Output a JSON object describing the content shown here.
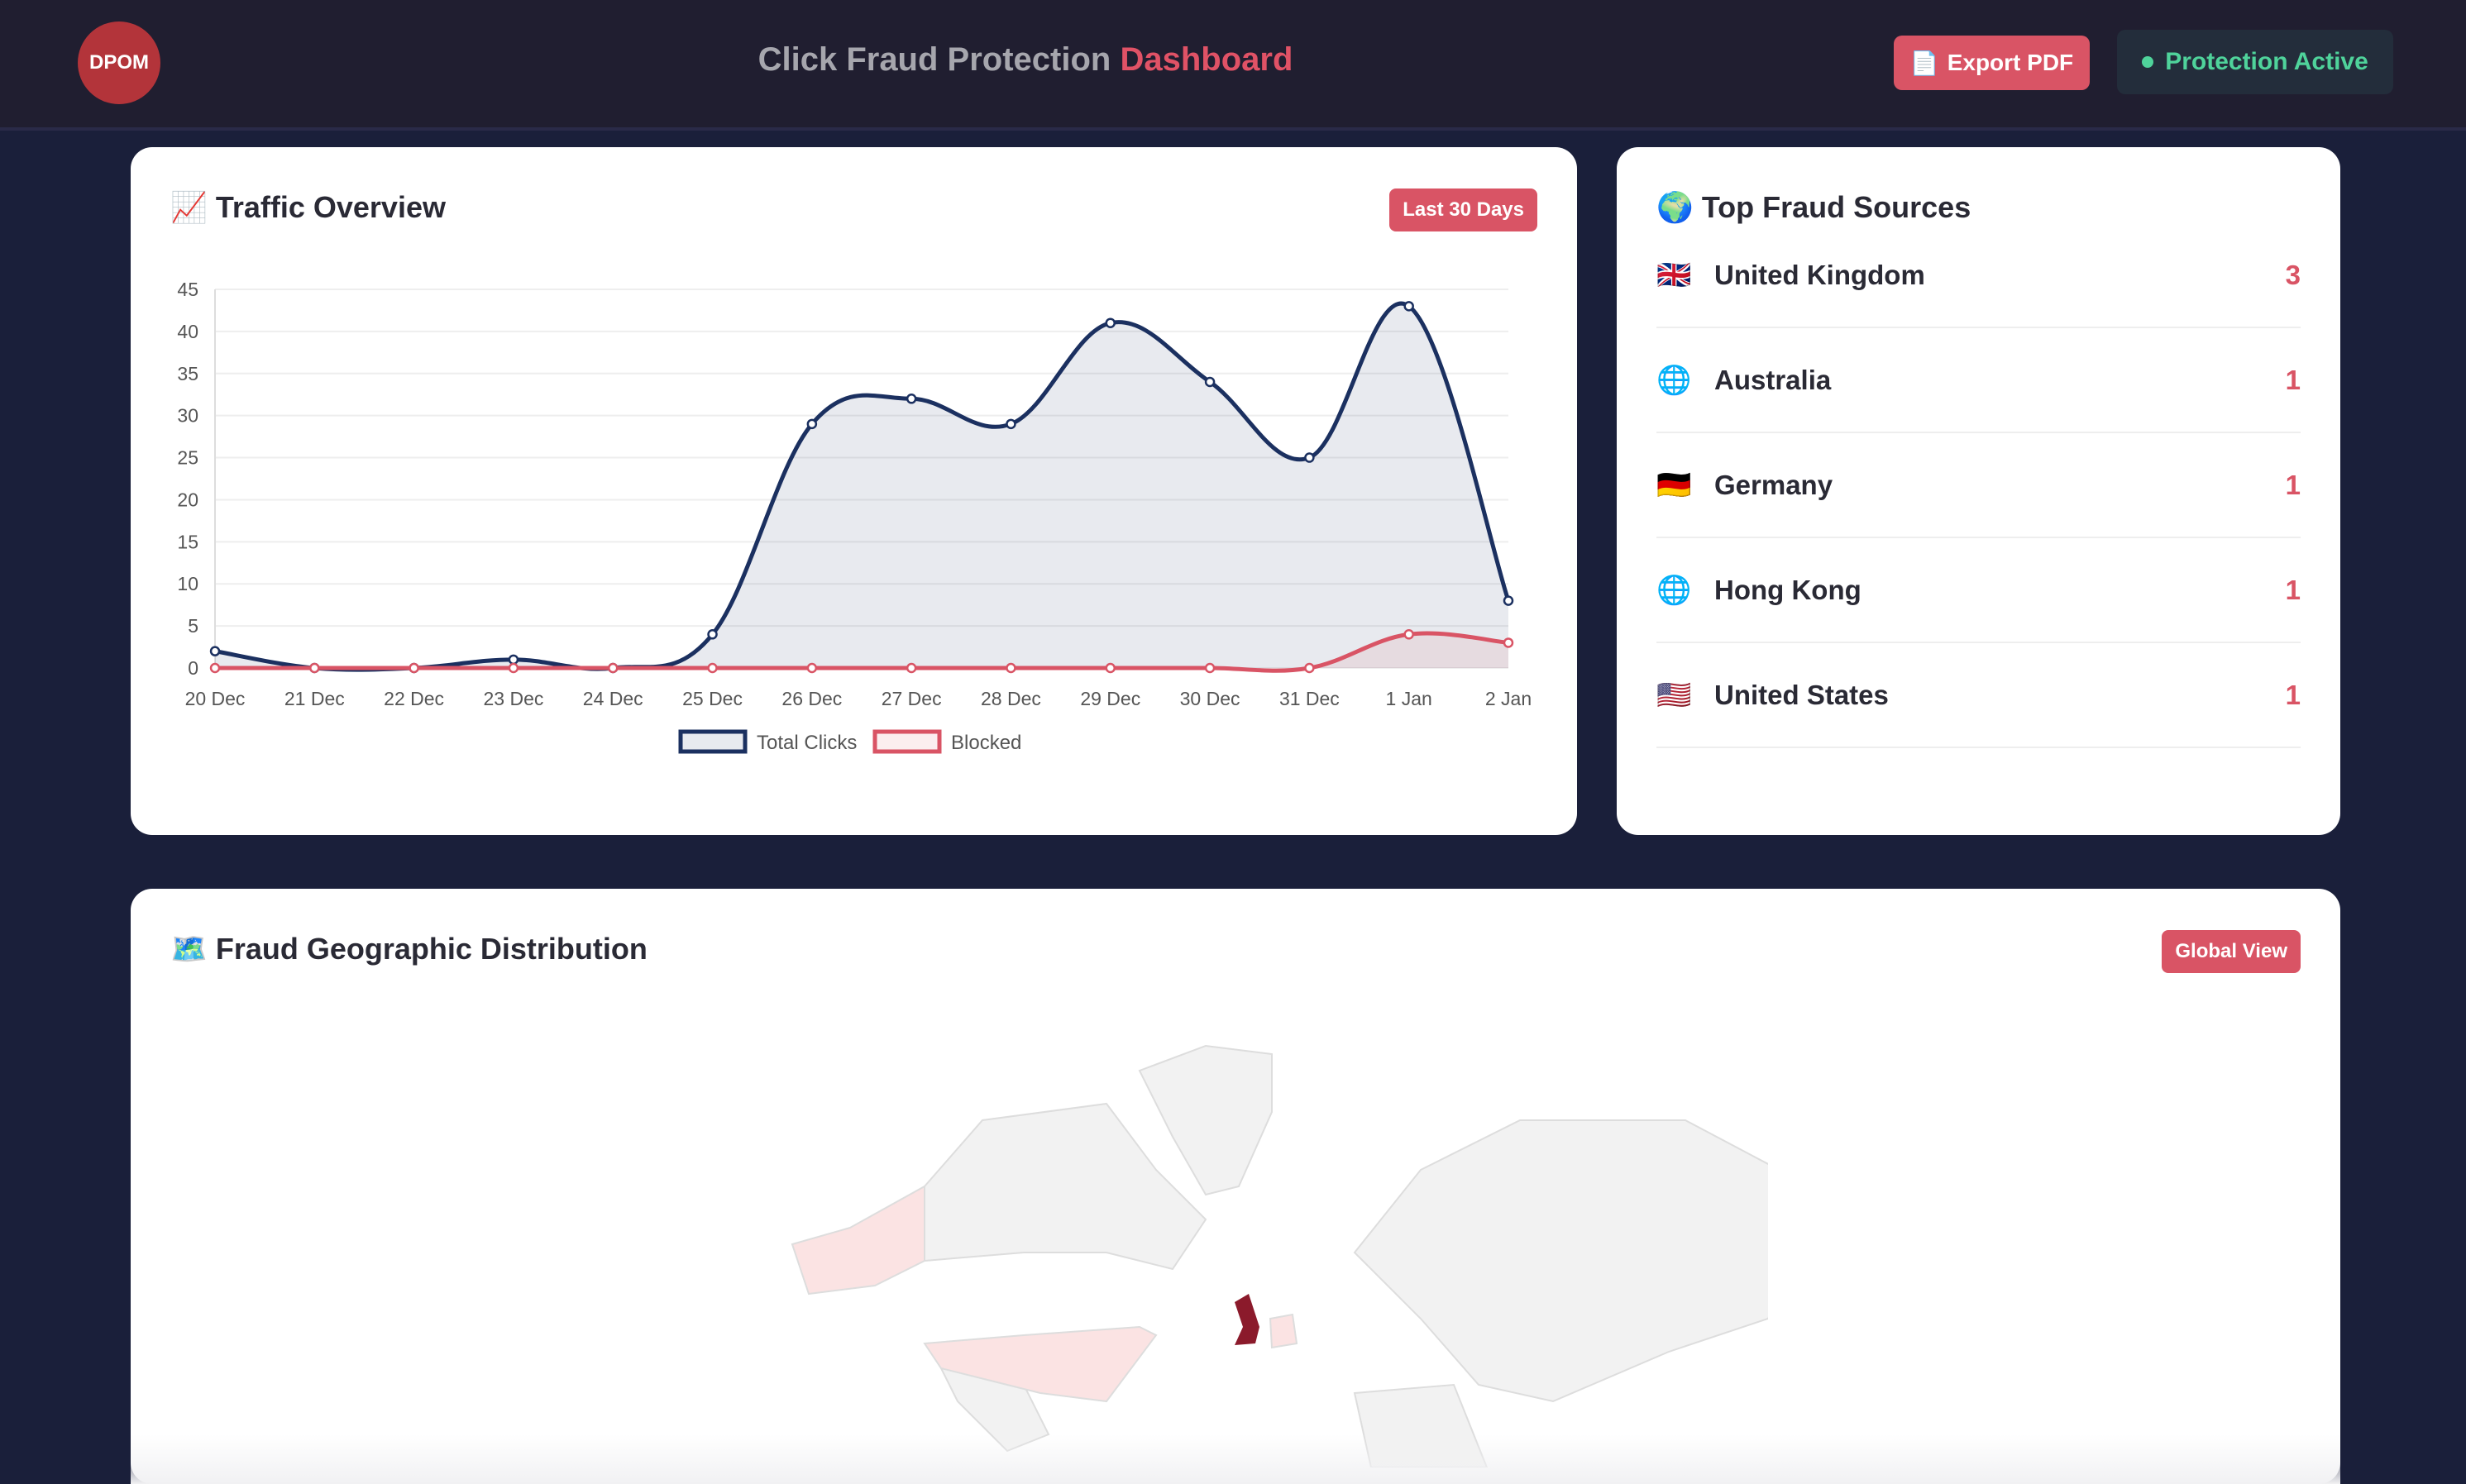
{
  "header": {
    "logo": "DPOM",
    "title_main": "Click Fraud Protection",
    "title_accent": "Dashboard",
    "export_label": "Export PDF",
    "status_label": "Protection Active"
  },
  "traffic": {
    "icon": "chart-increasing-icon",
    "title": "Traffic Overview",
    "range": "Last 30 Days"
  },
  "sources": {
    "icon": "globe-icon",
    "title": "Top Fraud Sources",
    "items": [
      {
        "flag": "🇬🇧",
        "name": "United Kingdom",
        "count": "3"
      },
      {
        "flag": "🌐",
        "name": "Australia",
        "count": "1"
      },
      {
        "flag": "🇩🇪",
        "name": "Germany",
        "count": "1"
      },
      {
        "flag": "🌐",
        "name": "Hong Kong",
        "count": "1"
      },
      {
        "flag": "🇺🇸",
        "name": "United States",
        "count": "1"
      }
    ]
  },
  "geo": {
    "icon": "world-map-icon",
    "title": "Fraud Geographic Distribution",
    "view": "Global View"
  },
  "colors": {
    "total": "#1b3060",
    "blocked": "#d95465",
    "accent": "#d95465",
    "active": "#4fd39b"
  },
  "chart_data": {
    "type": "line",
    "categories": [
      "20 Dec",
      "21 Dec",
      "22 Dec",
      "23 Dec",
      "24 Dec",
      "25 Dec",
      "26 Dec",
      "27 Dec",
      "28 Dec",
      "29 Dec",
      "30 Dec",
      "31 Dec",
      "1 Jan",
      "2 Jan"
    ],
    "series": [
      {
        "name": "Total Clicks",
        "values": [
          2,
          0,
          0,
          1,
          0,
          4,
          29,
          32,
          29,
          41,
          34,
          25,
          43,
          8
        ]
      },
      {
        "name": "Blocked",
        "values": [
          0,
          0,
          0,
          0,
          0,
          0,
          0,
          0,
          0,
          0,
          0,
          0,
          4,
          3
        ]
      }
    ],
    "ylim": [
      0,
      45
    ],
    "yticks": [
      0,
      5,
      10,
      15,
      20,
      25,
      30,
      35,
      40,
      45
    ],
    "grid": true,
    "legend": "bottom",
    "smooth": true,
    "fill": true
  }
}
